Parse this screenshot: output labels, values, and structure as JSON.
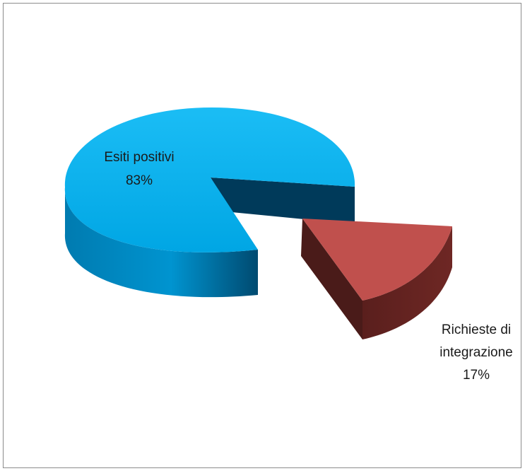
{
  "chart_data": {
    "type": "pie",
    "slices": [
      {
        "label_lines": [
          "Esiti positivi"
        ],
        "percent_text": "83%",
        "value": 83,
        "color": "#00aeef",
        "exploded": false
      },
      {
        "label_lines": [
          "Richieste di",
          "integrazione"
        ],
        "percent_text": "17%",
        "value": 17,
        "color": "#c0504d",
        "exploded": true
      }
    ],
    "legend": "none",
    "style": "3d-exploded"
  }
}
